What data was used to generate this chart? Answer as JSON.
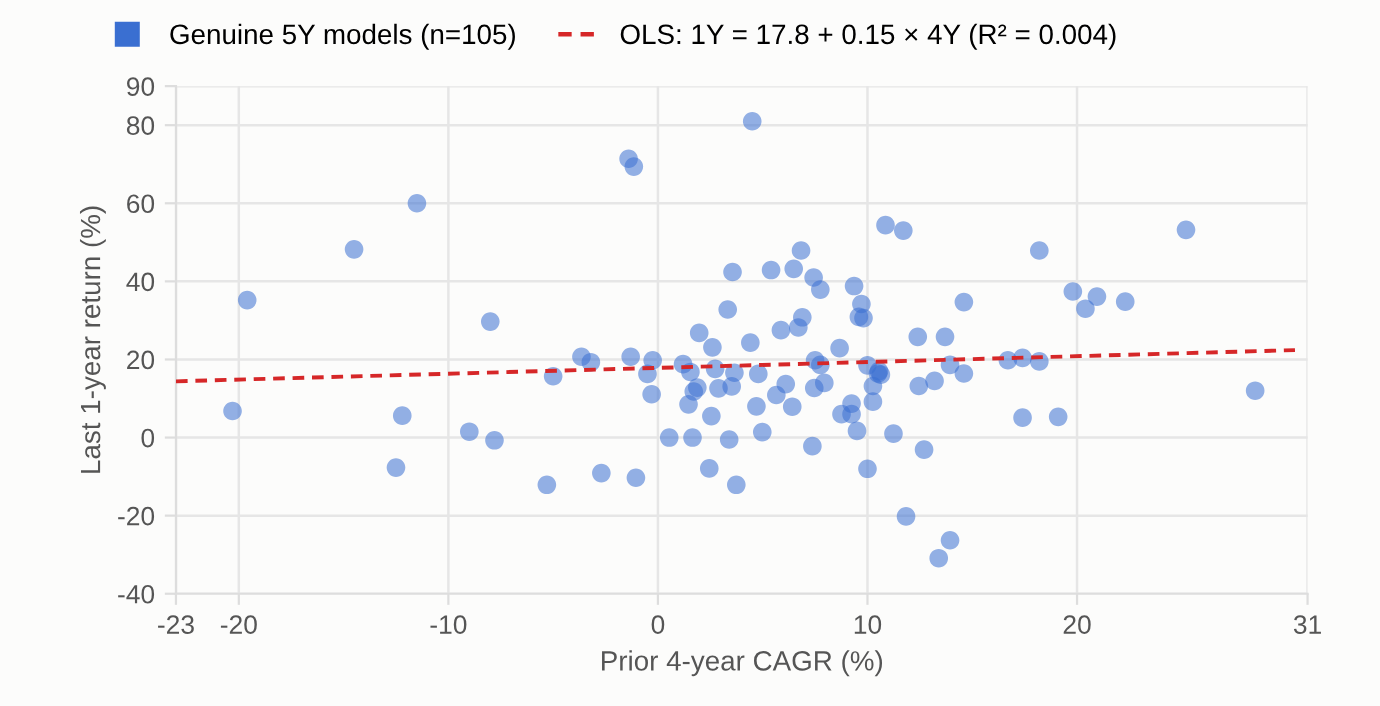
{
  "chart_data": {
    "type": "scatter",
    "xlabel": "Prior 4-year CAGR (%)",
    "ylabel": "Last 1-year return (%)",
    "xlim": [
      -23,
      31
    ],
    "xticks": [
      -23,
      -20,
      -10,
      0,
      10,
      20,
      31
    ],
    "ylim": [
      -40,
      90
    ],
    "yticks": [
      -40,
      -20,
      0,
      20,
      40,
      60,
      80,
      90
    ],
    "grid": true,
    "legend": "top left",
    "marker": "circle",
    "series": [
      {
        "name": "Genuine 5Y models (n=105)",
        "color": "#3a6fd1",
        "x": [
          -19.6,
          -20.3,
          -14.5,
          -11.5,
          -8.0,
          -12.2,
          -12.5,
          -9.0,
          -7.8,
          -5.3,
          -5.0,
          -2.7,
          -1.05,
          -3.65,
          -3.2,
          -1.3,
          -0.25,
          -0.5,
          -0.3,
          -1.4,
          -1.15,
          4.5,
          0.54,
          1.65,
          1.2,
          1.55,
          1.97,
          2.6,
          1.88,
          1.71,
          1.46,
          2.55,
          2.45,
          2.73,
          2.89,
          3.33,
          3.4,
          3.56,
          3.65,
          3.52,
          3.74,
          4.41,
          4.79,
          4.7,
          4.98,
          5.4,
          5.65,
          5.87,
          6.1,
          6.41,
          6.48,
          6.7,
          6.83,
          6.89,
          7.43,
          7.75,
          7.5,
          7.75,
          7.46,
          7.94,
          7.37,
          8.67,
          8.76,
          9.24,
          9.24,
          9.5,
          9.36,
          9.71,
          9.59,
          9.81,
          10.0,
          10.26,
          10.26,
          10.0,
          10.5,
          10.64,
          10.55,
          10.86,
          11.71,
          11.24,
          11.84,
          12.4,
          12.45,
          12.7,
          13.2,
          13.4,
          13.7,
          13.94,
          13.94,
          14.6,
          14.6,
          16.7,
          17.4,
          17.4,
          18.2,
          18.2,
          19.1,
          19.8,
          20.4,
          20.95,
          22.3,
          25.2,
          28.5
        ],
        "values": [
          35.2,
          6.8,
          48.2,
          60.0,
          29.7,
          5.6,
          -7.7,
          1.5,
          -0.7,
          -12.1,
          15.7,
          -9.1,
          -10.3,
          20.7,
          19.3,
          20.7,
          19.8,
          16.3,
          11.1,
          71.4,
          69.4,
          81.0,
          0,
          0,
          18.8,
          16.8,
          26.8,
          23.1,
          12.8,
          11.8,
          8.5,
          5.5,
          -7.9,
          17.6,
          12.6,
          32.8,
          -0.5,
          42.4,
          16.6,
          13.1,
          -12.1,
          24.3,
          16.3,
          8.0,
          1.4,
          42.9,
          10.9,
          27.5,
          13.7,
          7.9,
          43.2,
          28.2,
          47.9,
          30.8,
          41.0,
          37.9,
          19.8,
          18.6,
          12.7,
          14.0,
          -2.2,
          22.9,
          6.0,
          6.0,
          8.7,
          1.7,
          38.8,
          34.2,
          30.9,
          30.6,
          18.5,
          13.2,
          9.2,
          -8.0,
          16.4,
          16.1,
          17.0,
          54.4,
          53.0,
          1.0,
          -20.2,
          25.8,
          13.2,
          -3.1,
          14.5,
          -30.9,
          25.8,
          -26.3,
          18.6,
          16.4,
          34.7,
          19.8,
          20.4,
          5.1,
          19.5,
          47.9,
          5.3,
          37.4,
          33.0,
          36.1,
          34.8,
          53.2,
          12.0
        ]
      },
      {
        "name": "OLS: 1Y = 17.8 + 0.15 × 4Y (R² = 0.004)",
        "type": "line",
        "color": "#d62728",
        "line_style": "dashed",
        "marker": "none",
        "x": [
          -23,
          30.4
        ],
        "values": [
          14.4,
          22.4
        ]
      }
    ]
  }
}
